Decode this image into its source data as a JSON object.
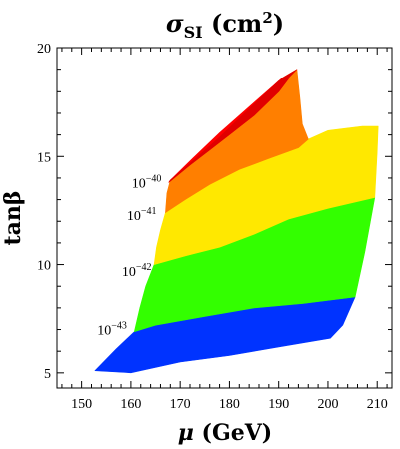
{
  "chart_data": {
    "type": "area",
    "title_symbol": "σ",
    "title_subscript": "SI",
    "title_unit": " (cm",
    "title_unit_exp": "2",
    "title_unit_close": ")",
    "xlabel_symbol": "μ",
    "xlabel_unit": " (GeV)",
    "ylabel": "tanβ",
    "xlim": [
      145,
      213
    ],
    "ylim": [
      4.3,
      20
    ],
    "xticks": [
      150,
      160,
      170,
      180,
      190,
      200,
      210
    ],
    "yticks": [
      5,
      10,
      15,
      20
    ],
    "grid": false,
    "contour_labels": [
      {
        "base": "10",
        "exp": "−40",
        "x": 167.0,
        "y": 13.8
      },
      {
        "base": "10",
        "exp": "−41",
        "x": 166.0,
        "y": 12.3
      },
      {
        "base": "10",
        "exp": "−42",
        "x": 165.0,
        "y": 9.7
      },
      {
        "base": "10",
        "exp": "−43",
        "x": 160.0,
        "y": 7.0
      }
    ],
    "colors": {
      "blue": "#0033ff",
      "green": "#33ff00",
      "yellow": "#ffe800",
      "orange": "#ff7f00",
      "red": "#ff0000",
      "red_dark": "#e00000"
    },
    "regions": [
      {
        "name": "blue",
        "color_key": "blue",
        "points": [
          [
            152.7,
            5.1
          ],
          [
            160,
            5.0
          ],
          [
            170,
            5.5
          ],
          [
            180,
            5.8
          ],
          [
            190,
            6.2
          ],
          [
            200.5,
            6.6
          ],
          [
            203,
            7.2
          ],
          [
            205.5,
            8.5
          ],
          [
            195,
            8.2
          ],
          [
            185,
            8.0
          ],
          [
            175,
            7.6
          ],
          [
            165,
            7.2
          ],
          [
            160.7,
            6.9
          ],
          [
            157,
            6.1
          ]
        ]
      },
      {
        "name": "green",
        "color_key": "green",
        "points": [
          [
            160.7,
            6.9
          ],
          [
            165,
            7.2
          ],
          [
            175,
            7.6
          ],
          [
            185,
            8.0
          ],
          [
            195,
            8.2
          ],
          [
            205.5,
            8.5
          ],
          [
            207.5,
            10.6
          ],
          [
            209.5,
            13.1
          ],
          [
            200,
            12.6
          ],
          [
            192,
            12.1
          ],
          [
            185,
            11.4
          ],
          [
            178,
            10.8
          ],
          [
            171,
            10.4
          ],
          [
            164.7,
            10.0
          ],
          [
            163,
            9.0
          ],
          [
            161.8,
            8.0
          ]
        ]
      },
      {
        "name": "yellow",
        "color_key": "yellow",
        "points": [
          [
            164.7,
            10.0
          ],
          [
            171,
            10.4
          ],
          [
            178,
            10.8
          ],
          [
            185,
            11.4
          ],
          [
            192,
            12.1
          ],
          [
            200,
            12.6
          ],
          [
            209.5,
            13.1
          ],
          [
            210,
            15.2
          ],
          [
            210.2,
            16.4
          ],
          [
            207,
            16.4
          ],
          [
            200,
            16.2
          ],
          [
            196,
            15.8
          ],
          [
            194,
            15.4
          ],
          [
            188,
            14.9
          ],
          [
            182,
            14.4
          ],
          [
            176,
            13.7
          ],
          [
            171,
            13.0
          ],
          [
            167,
            12.4
          ],
          [
            166,
            11.6
          ],
          [
            165.2,
            10.8
          ]
        ]
      },
      {
        "name": "orange",
        "color_key": "orange",
        "points": [
          [
            167,
            12.4
          ],
          [
            171,
            13.0
          ],
          [
            176,
            13.7
          ],
          [
            182,
            14.4
          ],
          [
            188,
            14.9
          ],
          [
            194,
            15.4
          ],
          [
            196,
            15.8
          ],
          [
            194.8,
            16.5
          ],
          [
            194.3,
            17.7
          ],
          [
            193.7,
            19.0
          ],
          [
            190,
            18.5
          ],
          [
            184,
            17.2
          ],
          [
            178,
            15.9
          ],
          [
            172.6,
            14.8
          ],
          [
            168,
            13.9
          ],
          [
            167.3,
            13.3
          ]
        ]
      },
      {
        "name": "red",
        "color_key": "red",
        "points": [
          [
            167.7,
            13.8
          ],
          [
            172,
            14.6
          ],
          [
            176,
            15.3
          ],
          [
            180.5,
            16.1
          ],
          [
            185,
            16.9
          ],
          [
            190,
            18.0
          ],
          [
            192,
            18.6
          ],
          [
            190.5,
            18.6
          ],
          [
            184,
            17.3
          ],
          [
            178,
            16.1
          ],
          [
            172.5,
            14.9
          ],
          [
            168,
            13.9
          ]
        ]
      },
      {
        "name": "red-dark",
        "color_key": "red_dark",
        "points": [
          [
            192,
            18.6
          ],
          [
            190,
            18.0
          ],
          [
            185,
            16.9
          ],
          [
            180.5,
            16.1
          ],
          [
            176,
            15.3
          ],
          [
            172,
            14.6
          ],
          [
            167.7,
            13.8
          ],
          [
            168,
            13.9
          ],
          [
            172.6,
            14.8
          ],
          [
            178,
            15.9
          ],
          [
            184,
            17.2
          ],
          [
            190,
            18.5
          ],
          [
            193.7,
            19.0
          ]
        ]
      }
    ]
  }
}
